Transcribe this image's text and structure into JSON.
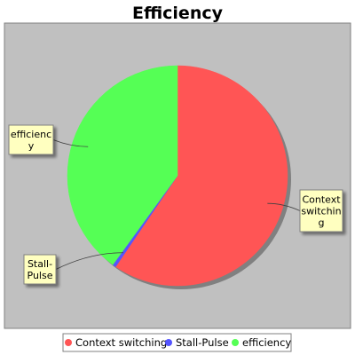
{
  "chart_data": {
    "type": "pie",
    "title": "Efficiency",
    "series": [
      {
        "name": "Context switching",
        "value": 59.5,
        "color": "#ff5555",
        "label_lines": [
          "Context",
          "switchin",
          "g"
        ]
      },
      {
        "name": "Stall-Pulse",
        "value": 0.5,
        "color": "#5555ff",
        "label_lines": [
          "Stall-",
          "Pulse"
        ]
      },
      {
        "name": "efficiency",
        "value": 40.0,
        "color": "#55ff55",
        "label_lines": [
          "efficienc",
          "y"
        ]
      }
    ],
    "legend_position": "bottom",
    "plot_background": "#c0c0c0"
  }
}
